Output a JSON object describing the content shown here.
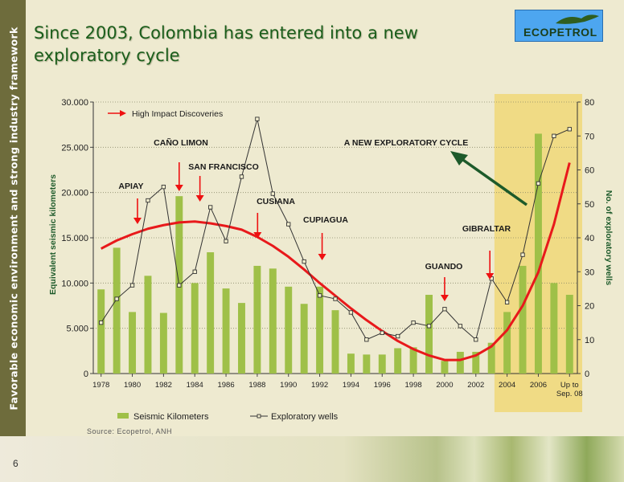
{
  "slide": {
    "sidebar_text": "Favorable economic environment and strong industry framework",
    "title": "Since 2003, Colombia has entered into a new exploratory cycle",
    "logo_text": "ECOPETROL",
    "source": "Source: Ecopetrol, ANH",
    "page_number": "6"
  },
  "chart_data": {
    "type": "bar",
    "title": "",
    "x": [
      "1978",
      "1979",
      "1980",
      "1981",
      "1982",
      "1983",
      "1984",
      "1985",
      "1986",
      "1987",
      "1988",
      "1989",
      "1990",
      "1991",
      "1992",
      "1993",
      "1994",
      "1995",
      "1996",
      "1997",
      "1998",
      "1999",
      "2000",
      "2001",
      "2002",
      "2003",
      "2004",
      "2005",
      "2006",
      "2007",
      "Up to Sep. 08"
    ],
    "x_tick_labels": [
      "1978",
      "1980",
      "1982",
      "1984",
      "1986",
      "1988",
      "1990",
      "1992",
      "1994",
      "1996",
      "1998",
      "2000",
      "2002",
      "2004",
      "2006",
      "Up to\nSep. 08"
    ],
    "series": [
      {
        "name": "Seismic Kilometers",
        "type": "bar",
        "axis": "left",
        "color": "#9fc048",
        "values": [
          9300,
          13900,
          6800,
          10800,
          6700,
          19600,
          10000,
          13400,
          9400,
          7800,
          11900,
          11600,
          9600,
          7700,
          9600,
          7000,
          2200,
          2100,
          2100,
          2800,
          2900,
          8700,
          1400,
          2400,
          2400,
          3400,
          6800,
          11900,
          26500,
          10000,
          8700
        ]
      },
      {
        "name": "Exploratory wells",
        "type": "line",
        "axis": "right",
        "color": "#333333",
        "marker": "square-open",
        "values": [
          15,
          22,
          26,
          51,
          55,
          26,
          30,
          49,
          39,
          58,
          75,
          53,
          44,
          33,
          23,
          22,
          18,
          10,
          12,
          11,
          15,
          14,
          19,
          14,
          10,
          28,
          21,
          35,
          56,
          70,
          72
        ]
      }
    ],
    "trend_line": {
      "color": "#e8191b",
      "description": "smoothed trend"
    },
    "ylabel": "Equivalent seismic kilometers",
    "y2label": "No. of exploratory wells",
    "ylim": [
      0,
      30000
    ],
    "y_ticks": [
      "0",
      "5.000",
      "10.000",
      "15.000",
      "20.000",
      "25.000",
      "30.000"
    ],
    "y2lim": [
      0,
      80
    ],
    "y2_ticks": [
      "0",
      "10",
      "20",
      "30",
      "40",
      "50",
      "60",
      "70",
      "80"
    ],
    "grid": "horizontal dotted",
    "legend": "bottom",
    "highlight": {
      "from": "2004",
      "to": "Up to Sep. 08",
      "color": "#f0d878"
    },
    "annotations": [
      {
        "label": "High Impact Discoveries",
        "type": "legend-arrow"
      },
      {
        "label": "APIAY",
        "year": "1981"
      },
      {
        "label": "CAÑO LIMON",
        "year": "1983"
      },
      {
        "label": "SAN FRANCISCO",
        "year": "1985"
      },
      {
        "label": "CUSIANA",
        "year": "1989"
      },
      {
        "label": "CUPIAGUA",
        "year": "1992"
      },
      {
        "label": "GUANDO",
        "year": "2000"
      },
      {
        "label": "GIBRALTAR",
        "year": "2003"
      },
      {
        "label": "A NEW EXPLORATORY CYCLE",
        "type": "banner"
      }
    ]
  }
}
